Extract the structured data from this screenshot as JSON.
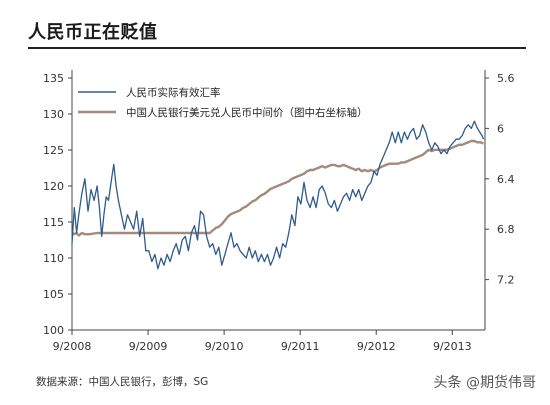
{
  "title": "人民币正在贬值",
  "source": "数据来源：中国人民银行，彭博，SG",
  "watermark": "头条 @期货伟哥",
  "chart_data": {
    "type": "line",
    "title": "人民币正在贬值",
    "xlabel": "",
    "ylabel": "",
    "x_ticks": [
      "9/2008",
      "9/2009",
      "9/2010",
      "9/2011",
      "9/2012",
      "9/2013"
    ],
    "x_range": [
      2008.67,
      2014.1
    ],
    "left_axis": {
      "ticks": [
        100,
        105,
        110,
        115,
        120,
        125,
        130,
        135
      ],
      "ylim": [
        100,
        135
      ]
    },
    "right_axis": {
      "ticks": [
        5.6,
        6,
        6.4,
        6.8,
        7.2
      ],
      "ylim": [
        7.6,
        5.6
      ],
      "inverted": true
    },
    "legend": "top-left",
    "grid": false,
    "series": [
      {
        "name": "人民币实际有效汇率",
        "axis": "left",
        "color": "#2f5b8c",
        "points": [
          [
            2008.67,
            112.0
          ],
          [
            2008.7,
            117.0
          ],
          [
            2008.73,
            113.5
          ],
          [
            2008.76,
            116.0
          ],
          [
            2008.8,
            119.0
          ],
          [
            2008.84,
            121.0
          ],
          [
            2008.88,
            116.5
          ],
          [
            2008.92,
            119.5
          ],
          [
            2008.96,
            118.0
          ],
          [
            2009.0,
            120.0
          ],
          [
            2009.03,
            117.0
          ],
          [
            2009.06,
            113.0
          ],
          [
            2009.09,
            116.0
          ],
          [
            2009.12,
            118.5
          ],
          [
            2009.15,
            118.0
          ],
          [
            2009.19,
            121.0
          ],
          [
            2009.22,
            123.0
          ],
          [
            2009.25,
            120.0
          ],
          [
            2009.28,
            118.0
          ],
          [
            2009.32,
            116.0
          ],
          [
            2009.36,
            114.0
          ],
          [
            2009.4,
            116.0
          ],
          [
            2009.44,
            115.0
          ],
          [
            2009.48,
            114.0
          ],
          [
            2009.52,
            116.5
          ],
          [
            2009.56,
            113.0
          ],
          [
            2009.6,
            115.5
          ],
          [
            2009.64,
            111.0
          ],
          [
            2009.68,
            111.0
          ],
          [
            2009.72,
            109.5
          ],
          [
            2009.76,
            110.5
          ],
          [
            2009.8,
            108.5
          ],
          [
            2009.84,
            110.0
          ],
          [
            2009.88,
            109.0
          ],
          [
            2009.92,
            110.5
          ],
          [
            2009.96,
            109.5
          ],
          [
            2010.0,
            111.0
          ],
          [
            2010.04,
            112.0
          ],
          [
            2010.08,
            110.5
          ],
          [
            2010.12,
            112.5
          ],
          [
            2010.16,
            113.0
          ],
          [
            2010.2,
            111.0
          ],
          [
            2010.24,
            113.5
          ],
          [
            2010.28,
            114.5
          ],
          [
            2010.32,
            112.5
          ],
          [
            2010.36,
            116.5
          ],
          [
            2010.4,
            116.0
          ],
          [
            2010.44,
            113.0
          ],
          [
            2010.48,
            111.5
          ],
          [
            2010.52,
            112.0
          ],
          [
            2010.56,
            110.5
          ],
          [
            2010.6,
            111.5
          ],
          [
            2010.64,
            109.0
          ],
          [
            2010.68,
            110.5
          ],
          [
            2010.72,
            112.0
          ],
          [
            2010.76,
            113.5
          ],
          [
            2010.8,
            111.5
          ],
          [
            2010.84,
            112.0
          ],
          [
            2010.88,
            111.0
          ],
          [
            2010.92,
            110.5
          ],
          [
            2010.96,
            110.0
          ],
          [
            2011.0,
            111.5
          ],
          [
            2011.04,
            110.0
          ],
          [
            2011.08,
            111.0
          ],
          [
            2011.12,
            109.5
          ],
          [
            2011.16,
            110.5
          ],
          [
            2011.2,
            109.5
          ],
          [
            2011.24,
            110.5
          ],
          [
            2011.28,
            109.0
          ],
          [
            2011.32,
            110.0
          ],
          [
            2011.36,
            111.5
          ],
          [
            2011.4,
            110.0
          ],
          [
            2011.44,
            112.0
          ],
          [
            2011.48,
            111.5
          ],
          [
            2011.52,
            113.5
          ],
          [
            2011.56,
            116.0
          ],
          [
            2011.6,
            114.5
          ],
          [
            2011.64,
            118.5
          ],
          [
            2011.68,
            117.5
          ],
          [
            2011.72,
            120.5
          ],
          [
            2011.76,
            118.0
          ],
          [
            2011.8,
            117.0
          ],
          [
            2011.84,
            118.5
          ],
          [
            2011.88,
            117.0
          ],
          [
            2011.92,
            119.5
          ],
          [
            2011.96,
            120.0
          ],
          [
            2012.0,
            119.0
          ],
          [
            2012.04,
            117.5
          ],
          [
            2012.08,
            117.0
          ],
          [
            2012.12,
            118.0
          ],
          [
            2012.16,
            116.5
          ],
          [
            2012.2,
            117.5
          ],
          [
            2012.24,
            118.5
          ],
          [
            2012.28,
            119.0
          ],
          [
            2012.32,
            118.0
          ],
          [
            2012.36,
            119.5
          ],
          [
            2012.4,
            118.5
          ],
          [
            2012.44,
            119.5
          ],
          [
            2012.48,
            118.0
          ],
          [
            2012.52,
            119.0
          ],
          [
            2012.56,
            120.0
          ],
          [
            2012.6,
            120.5
          ],
          [
            2012.64,
            122.0
          ],
          [
            2012.68,
            121.5
          ],
          [
            2012.72,
            123.0
          ],
          [
            2012.76,
            124.0
          ],
          [
            2012.8,
            125.0
          ],
          [
            2012.84,
            126.0
          ],
          [
            2012.88,
            127.5
          ],
          [
            2012.92,
            126.0
          ],
          [
            2012.96,
            127.5
          ],
          [
            2013.0,
            126.0
          ],
          [
            2013.04,
            127.5
          ],
          [
            2013.08,
            126.5
          ],
          [
            2013.12,
            127.5
          ],
          [
            2013.16,
            128.0
          ],
          [
            2013.2,
            126.5
          ],
          [
            2013.24,
            127.0
          ],
          [
            2013.28,
            128.5
          ],
          [
            2013.32,
            127.5
          ],
          [
            2013.36,
            126.0
          ],
          [
            2013.4,
            125.0
          ],
          [
            2013.44,
            126.0
          ],
          [
            2013.48,
            125.5
          ],
          [
            2013.52,
            124.5
          ],
          [
            2013.56,
            125.0
          ],
          [
            2013.6,
            124.5
          ],
          [
            2013.64,
            125.5
          ],
          [
            2013.68,
            126.0
          ],
          [
            2013.72,
            126.5
          ],
          [
            2013.76,
            126.5
          ],
          [
            2013.8,
            127.0
          ],
          [
            2013.84,
            128.0
          ],
          [
            2013.88,
            128.5
          ],
          [
            2013.92,
            128.0
          ],
          [
            2013.96,
            129.0
          ],
          [
            2014.0,
            128.0
          ],
          [
            2014.03,
            127.5
          ],
          [
            2014.06,
            127.0
          ],
          [
            2014.08,
            126.5
          ]
        ]
      },
      {
        "name": "中国人民银行美元兑人民币中间价（图中右坐标轴）",
        "axis": "right",
        "color": "#a48a7b",
        "points": [
          [
            2008.67,
            6.83
          ],
          [
            2008.7,
            6.84
          ],
          [
            2008.73,
            6.83
          ],
          [
            2008.76,
            6.85
          ],
          [
            2008.8,
            6.83
          ],
          [
            2008.84,
            6.84
          ],
          [
            2008.9,
            6.84
          ],
          [
            2009.0,
            6.83
          ],
          [
            2009.2,
            6.83
          ],
          [
            2009.4,
            6.83
          ],
          [
            2009.6,
            6.83
          ],
          [
            2009.8,
            6.83
          ],
          [
            2010.0,
            6.83
          ],
          [
            2010.2,
            6.83
          ],
          [
            2010.4,
            6.83
          ],
          [
            2010.48,
            6.83
          ],
          [
            2010.52,
            6.81
          ],
          [
            2010.56,
            6.79
          ],
          [
            2010.6,
            6.78
          ],
          [
            2010.64,
            6.76
          ],
          [
            2010.68,
            6.73
          ],
          [
            2010.72,
            6.7
          ],
          [
            2010.76,
            6.68
          ],
          [
            2010.8,
            6.67
          ],
          [
            2010.84,
            6.66
          ],
          [
            2010.88,
            6.65
          ],
          [
            2010.92,
            6.63
          ],
          [
            2010.96,
            6.62
          ],
          [
            2011.0,
            6.6
          ],
          [
            2011.04,
            6.58
          ],
          [
            2011.08,
            6.57
          ],
          [
            2011.12,
            6.55
          ],
          [
            2011.16,
            6.53
          ],
          [
            2011.2,
            6.52
          ],
          [
            2011.24,
            6.5
          ],
          [
            2011.28,
            6.48
          ],
          [
            2011.32,
            6.47
          ],
          [
            2011.36,
            6.46
          ],
          [
            2011.4,
            6.45
          ],
          [
            2011.44,
            6.44
          ],
          [
            2011.48,
            6.43
          ],
          [
            2011.52,
            6.42
          ],
          [
            2011.56,
            6.4
          ],
          [
            2011.6,
            6.39
          ],
          [
            2011.64,
            6.38
          ],
          [
            2011.68,
            6.37
          ],
          [
            2011.72,
            6.36
          ],
          [
            2011.76,
            6.34
          ],
          [
            2011.8,
            6.33
          ],
          [
            2011.84,
            6.33
          ],
          [
            2011.88,
            6.32
          ],
          [
            2011.92,
            6.31
          ],
          [
            2011.96,
            6.3
          ],
          [
            2012.0,
            6.31
          ],
          [
            2012.04,
            6.3
          ],
          [
            2012.08,
            6.29
          ],
          [
            2012.12,
            6.29
          ],
          [
            2012.16,
            6.3
          ],
          [
            2012.2,
            6.3
          ],
          [
            2012.24,
            6.29
          ],
          [
            2012.28,
            6.3
          ],
          [
            2012.32,
            6.31
          ],
          [
            2012.36,
            6.32
          ],
          [
            2012.4,
            6.33
          ],
          [
            2012.44,
            6.32
          ],
          [
            2012.48,
            6.34
          ],
          [
            2012.52,
            6.33
          ],
          [
            2012.56,
            6.34
          ],
          [
            2012.6,
            6.33
          ],
          [
            2012.64,
            6.34
          ],
          [
            2012.68,
            6.33
          ],
          [
            2012.72,
            6.31
          ],
          [
            2012.76,
            6.3
          ],
          [
            2012.8,
            6.29
          ],
          [
            2012.84,
            6.28
          ],
          [
            2012.88,
            6.28
          ],
          [
            2012.92,
            6.28
          ],
          [
            2012.96,
            6.28
          ],
          [
            2013.0,
            6.27
          ],
          [
            2013.04,
            6.27
          ],
          [
            2013.08,
            6.26
          ],
          [
            2013.12,
            6.25
          ],
          [
            2013.16,
            6.24
          ],
          [
            2013.2,
            6.23
          ],
          [
            2013.24,
            6.22
          ],
          [
            2013.28,
            6.21
          ],
          [
            2013.32,
            6.19
          ],
          [
            2013.36,
            6.17
          ],
          [
            2013.4,
            6.18
          ],
          [
            2013.44,
            6.17
          ],
          [
            2013.48,
            6.17
          ],
          [
            2013.52,
            6.17
          ],
          [
            2013.56,
            6.17
          ],
          [
            2013.6,
            6.17
          ],
          [
            2013.64,
            6.16
          ],
          [
            2013.68,
            6.15
          ],
          [
            2013.72,
            6.14
          ],
          [
            2013.76,
            6.13
          ],
          [
            2013.8,
            6.13
          ],
          [
            2013.84,
            6.12
          ],
          [
            2013.88,
            6.11
          ],
          [
            2013.92,
            6.1
          ],
          [
            2013.96,
            6.1
          ],
          [
            2014.0,
            6.11
          ],
          [
            2014.04,
            6.11
          ],
          [
            2014.08,
            6.12
          ]
        ]
      }
    ]
  }
}
